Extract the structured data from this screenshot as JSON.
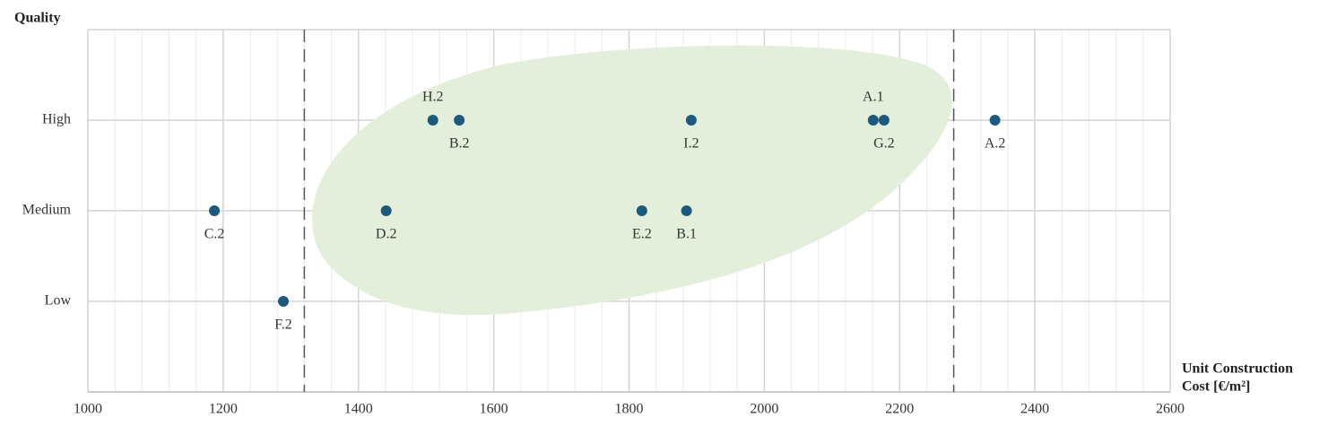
{
  "chart_data": {
    "type": "scatter",
    "ylabel": "Quality",
    "xlabel": [
      "Unit Construction",
      "Cost [€/m²]"
    ],
    "xlim": [
      1000,
      2600
    ],
    "xticks": [
      1000,
      1200,
      1400,
      1600,
      1800,
      2000,
      2200,
      2400,
      2600
    ],
    "minor_grid_divisions": 5,
    "ylim": [
      0,
      4
    ],
    "yticks": [
      {
        "value": 1,
        "label": "Low"
      },
      {
        "value": 2,
        "label": "Medium"
      },
      {
        "value": 3,
        "label": "High"
      }
    ],
    "grid": true,
    "reference_lines": [
      1320,
      2280
    ],
    "series": [
      {
        "color": "#1c5a7d",
        "x": [
          1187,
          1289,
          1441,
          1510,
          1549,
          1819,
          1885,
          1892,
          2161,
          2177,
          2341
        ],
        "values": [
          2,
          1,
          2,
          3,
          3,
          2,
          2,
          3,
          3,
          3,
          3
        ],
        "point_labels": [
          "C.2",
          "F.2",
          "D.2",
          "H.2",
          "B.2",
          "E.2",
          "B.1",
          "I.2",
          "A.1",
          "G.2",
          "A.2"
        ],
        "label_positions": [
          "below",
          "below",
          "below",
          "above",
          "below",
          "below",
          "below",
          "below",
          "above",
          "below",
          "below"
        ]
      }
    ]
  }
}
